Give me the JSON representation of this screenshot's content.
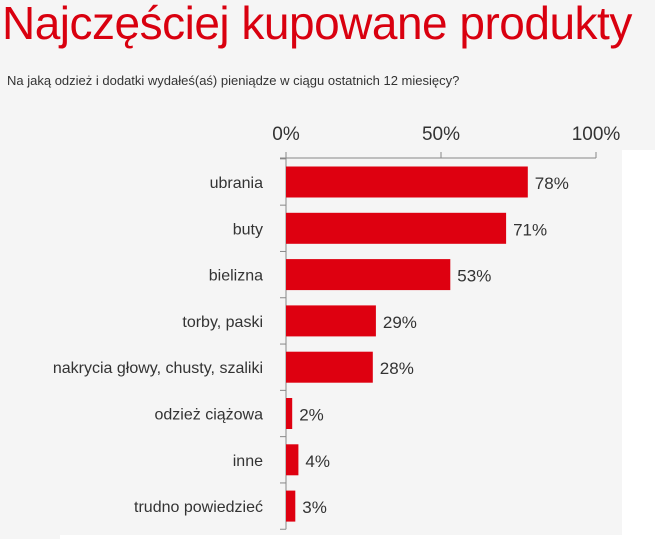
{
  "title": "Najczęściej kupowane produkty",
  "subtitle": "Na jaką odzież i dodatki wydałeś(aś) pieniądze w ciągu ostatnich 12 miesięcy?",
  "chart_data": {
    "type": "bar",
    "orientation": "horizontal",
    "title": "Najczęściej kupowane produkty",
    "subtitle": "Na jaką odzież i dodatki wydałeś(aś) pieniądze w ciągu ostatnich 12 miesięcy?",
    "categories": [
      "ubrania",
      "buty",
      "bielizna",
      "torby, paski",
      "nakrycia głowy, chusty, szaliki",
      "odzież ciążowa",
      "inne",
      "trudno powiedzieć"
    ],
    "values": [
      78,
      71,
      53,
      29,
      28,
      2,
      4,
      3
    ],
    "data_labels": [
      "78%",
      "71%",
      "53%",
      "29%",
      "28%",
      "2%",
      "4%",
      "3%"
    ],
    "xlim": [
      0,
      100
    ],
    "xticks": [
      0,
      50,
      100
    ],
    "xtick_labels": [
      "0%",
      "50%",
      "100%"
    ],
    "axis_position": "top",
    "grid": false,
    "bar_color": "#de0010"
  }
}
